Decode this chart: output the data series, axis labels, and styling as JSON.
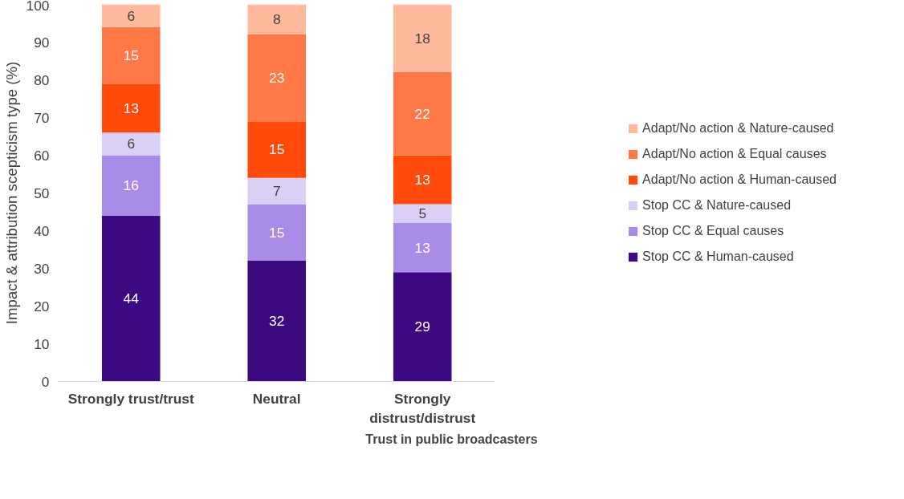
{
  "chart_data": {
    "type": "bar",
    "stacked": true,
    "xlabel": "Trust in public broadcasters",
    "ylabel": "Impact & attribution scepticism type (%)",
    "categories": [
      "Strongly trust/trust",
      "Neutral",
      "Strongly distrust/distrust"
    ],
    "series": [
      {
        "name": "Stop CC & Human-caused",
        "color": "#3b0a80",
        "values": [
          44,
          32,
          29
        ]
      },
      {
        "name": "Stop CC & Equal causes",
        "color": "#a98be8",
        "values": [
          16,
          15,
          13
        ]
      },
      {
        "name": "Stop CC & Nature-caused",
        "color": "#dad0f6",
        "values": [
          6,
          7,
          5
        ]
      },
      {
        "name": "Adapt/No action & Human-caused",
        "color": "#ff4a0c",
        "values": [
          13,
          15,
          13
        ]
      },
      {
        "name": "Adapt/No action & Equal causes",
        "color": "#ff7845",
        "values": [
          15,
          23,
          22
        ]
      },
      {
        "name": "Adapt/No action & Nature-caused",
        "color": "#ffb99c",
        "values": [
          6,
          8,
          18
        ]
      }
    ],
    "ylim": [
      0,
      100
    ],
    "yticks": [
      0,
      10,
      20,
      30,
      40,
      50,
      60,
      70,
      80,
      90,
      100
    ],
    "grid": false,
    "legend": "right",
    "data_labels": true
  }
}
